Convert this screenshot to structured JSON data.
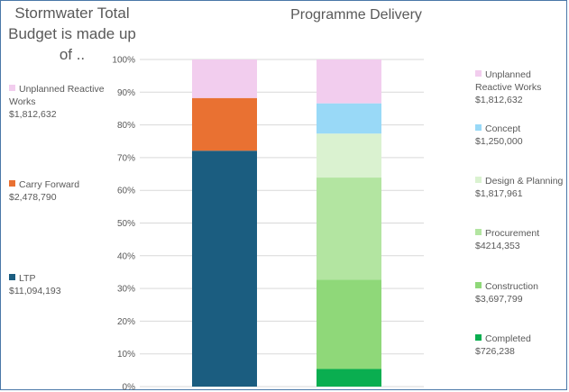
{
  "titles": {
    "left": "Stormwater Total Budget is made up of ..",
    "right": "Programme Delivery"
  },
  "chart_data": {
    "type": "bar",
    "stacked": "percent",
    "categories": [
      "Stormwater Total Budget",
      "Programme Delivery"
    ],
    "ylim": [
      0,
      100
    ],
    "yticks": [
      "0%",
      "10%",
      "20%",
      "30%",
      "40%",
      "50%",
      "60%",
      "70%",
      "80%",
      "90%",
      "100%"
    ],
    "bars": [
      {
        "name": "Stormwater Total Budget",
        "series": [
          {
            "name": "LTP",
            "value": 11094193,
            "label": "$11,094,193",
            "color": "#1b5d80"
          },
          {
            "name": "Carry Forward",
            "value": 2478790,
            "label": "$2,478,790",
            "color": "#e97132"
          },
          {
            "name": "Unplanned Reactive Works",
            "value": 1812632,
            "label": "$1,812,632",
            "color": "#f2cdee"
          }
        ]
      },
      {
        "name": "Programme Delivery",
        "series": [
          {
            "name": "Completed",
            "value": 726238,
            "label": "$726,238",
            "color": "#0aae50"
          },
          {
            "name": "Construction",
            "value": 3697799,
            "label": "$3,697,799",
            "color": "#8fd879"
          },
          {
            "name": "Procurement",
            "value": 4214353,
            "label": "$4214,353",
            "color": "#b3e5a1"
          },
          {
            "name": "Design & Planning",
            "value": 1817961,
            "label": "$1,817,961",
            "color": "#daf2d0"
          },
          {
            "name": "Concept",
            "value": 1250000,
            "label": "$1,250,000",
            "color": "#99d9f7"
          },
          {
            "name": "Unplanned Reactive Works",
            "value": 1812632,
            "label": "$1,812,632",
            "color": "#f2cdee"
          }
        ]
      }
    ]
  }
}
